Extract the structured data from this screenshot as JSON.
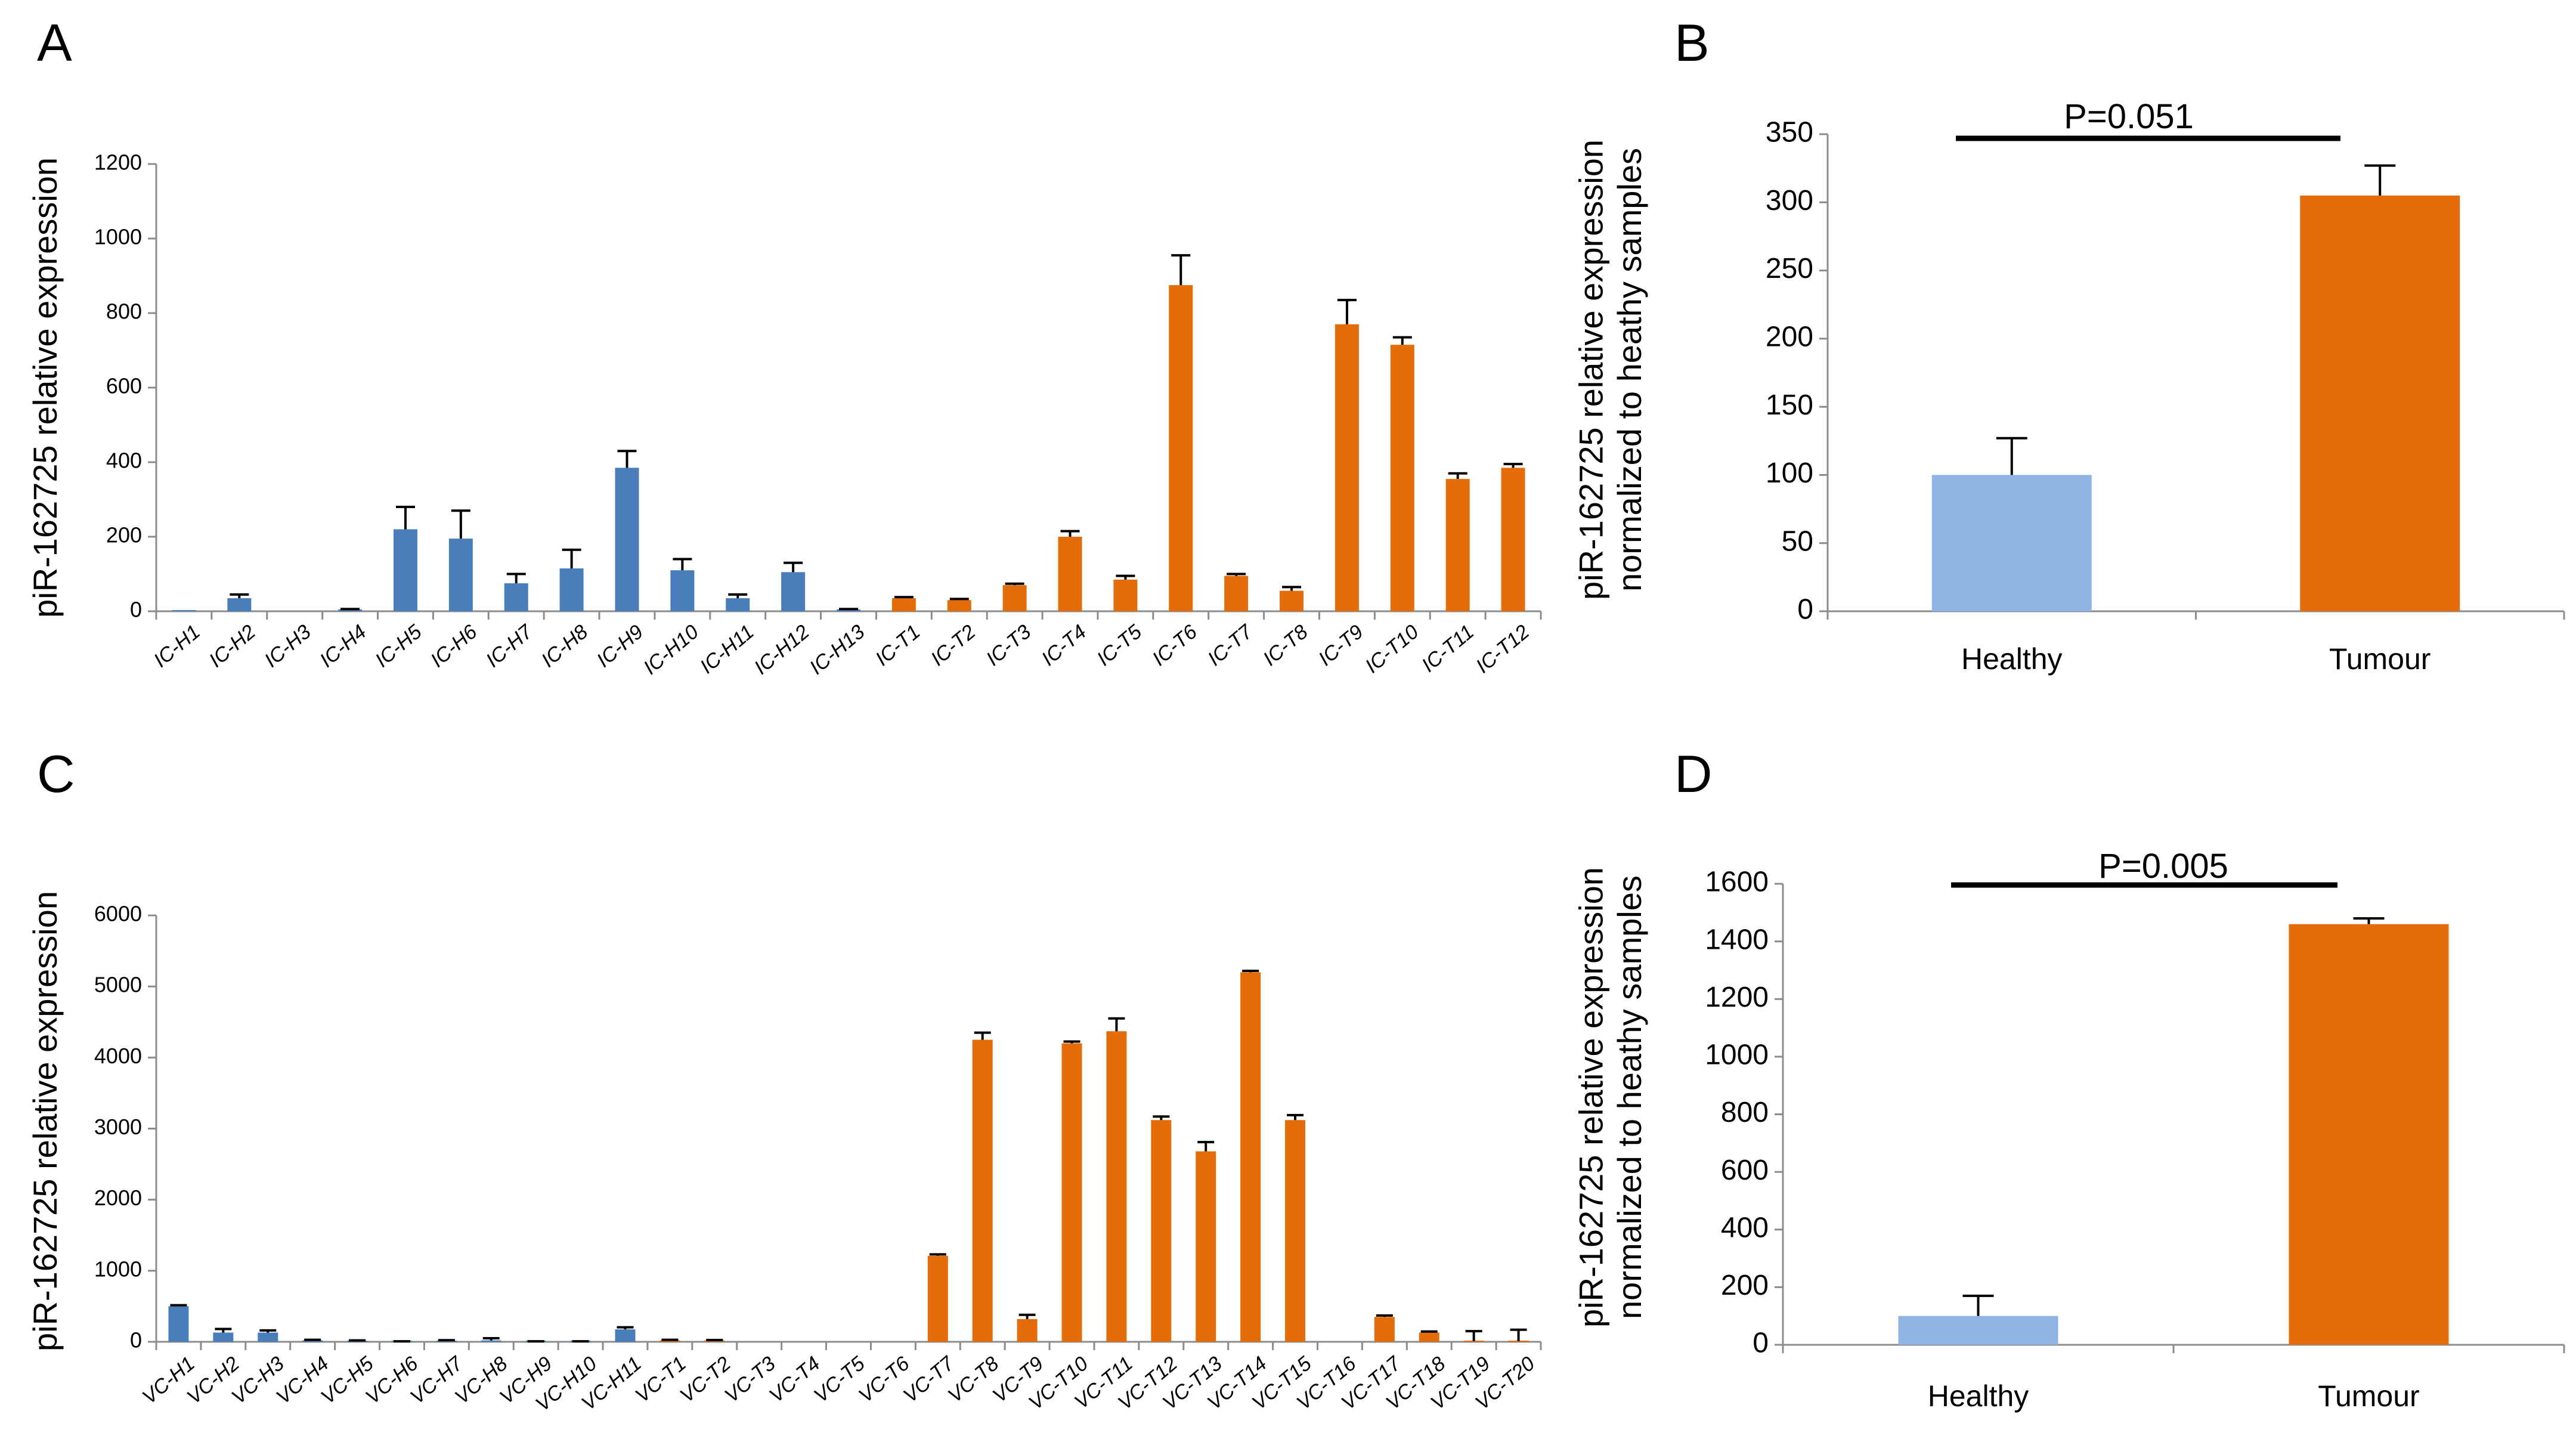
{
  "colors": {
    "healthy_individual": "#4a7ebb",
    "tumour": "#e46c0a",
    "healthy_group": "#8eb4e3",
    "axis": "#8c8c8c"
  },
  "chart_data": [
    {
      "panel": "A",
      "type": "bar",
      "ylabel": "piR-162725 relative expression",
      "ylim": [
        0,
        1200
      ],
      "yticks": [
        0,
        200,
        400,
        600,
        800,
        1000,
        1200
      ],
      "categories": [
        "IC-H1",
        "IC-H2",
        "IC-H3",
        "IC-H4",
        "IC-H5",
        "IC-H6",
        "IC-H7",
        "IC-H8",
        "IC-H9",
        "IC-H10",
        "IC-H11",
        "IC-H12",
        "IC-H13",
        "IC-T1",
        "IC-T2",
        "IC-T3",
        "IC-T4",
        "IC-T5",
        "IC-T6",
        "IC-T7",
        "IC-T8",
        "IC-T9",
        "IC-T10",
        "IC-T11",
        "IC-T12"
      ],
      "values": [
        1,
        35,
        0,
        5,
        220,
        195,
        75,
        115,
        385,
        110,
        35,
        105,
        5,
        35,
        30,
        70,
        200,
        85,
        875,
        95,
        55,
        770,
        715,
        355,
        385
      ],
      "errors": [
        0,
        10,
        0,
        1,
        60,
        75,
        25,
        50,
        45,
        30,
        10,
        25,
        1,
        3,
        3,
        4,
        15,
        10,
        80,
        5,
        10,
        65,
        20,
        15,
        10
      ],
      "groups": [
        "healthy",
        "healthy",
        "healthy",
        "healthy",
        "healthy",
        "healthy",
        "healthy",
        "healthy",
        "healthy",
        "healthy",
        "healthy",
        "healthy",
        "healthy",
        "tumour",
        "tumour",
        "tumour",
        "tumour",
        "tumour",
        "tumour",
        "tumour",
        "tumour",
        "tumour",
        "tumour",
        "tumour",
        "tumour"
      ],
      "grid": false,
      "legend": "none"
    },
    {
      "panel": "B",
      "type": "bar",
      "ylabel": [
        "piR-162725 relative expression",
        "normalized to heathy samples"
      ],
      "ylim": [
        0,
        350
      ],
      "yticks": [
        0,
        50,
        100,
        150,
        200,
        250,
        300,
        350
      ],
      "categories": [
        "Healthy",
        "Tumour"
      ],
      "values": [
        100,
        305
      ],
      "errors": [
        27,
        22
      ],
      "groups": [
        "healthy_group",
        "tumour"
      ],
      "annotation": "P=0.051",
      "grid": false,
      "legend": "none"
    },
    {
      "panel": "C",
      "type": "bar",
      "ylabel": "piR-162725 relative expression",
      "ylim": [
        0,
        6000
      ],
      "yticks": [
        0,
        1000,
        2000,
        3000,
        4000,
        5000,
        6000
      ],
      "categories": [
        "VC-H1",
        "VC-H2",
        "VC-H3",
        "VC-H4",
        "VC-H5",
        "VC-H6",
        "VC-H7",
        "VC-H8",
        "VC-H9",
        "VC-H10",
        "VC-H11",
        "VC-T1",
        "VC-T2",
        "VC-T3",
        "VC-T4",
        "VC-T5",
        "VC-T6",
        "VC-T7",
        "VC-T8",
        "VC-T9",
        "VC-T10",
        "VC-T11",
        "VC-T12",
        "VC-T13",
        "VC-T14",
        "VC-T15",
        "VC-T16",
        "VC-T17",
        "VC-T18",
        "VC-T19",
        "VC-T20"
      ],
      "values": [
        500,
        130,
        130,
        20,
        15,
        5,
        15,
        20,
        5,
        5,
        175,
        20,
        20,
        0,
        0,
        0,
        0,
        1210,
        4250,
        320,
        4200,
        4370,
        3120,
        2680,
        5200,
        3120,
        0,
        350,
        130,
        10,
        10
      ],
      "errors": [
        15,
        50,
        30,
        8,
        5,
        2,
        8,
        30,
        2,
        2,
        30,
        8,
        5,
        0,
        0,
        0,
        0,
        20,
        100,
        60,
        25,
        180,
        50,
        130,
        20,
        70,
        0,
        20,
        15,
        140,
        160
      ],
      "groups": [
        "healthy",
        "healthy",
        "healthy",
        "healthy",
        "healthy",
        "healthy",
        "healthy",
        "healthy",
        "healthy",
        "healthy",
        "healthy",
        "tumour",
        "tumour",
        "tumour",
        "tumour",
        "tumour",
        "tumour",
        "tumour",
        "tumour",
        "tumour",
        "tumour",
        "tumour",
        "tumour",
        "tumour",
        "tumour",
        "tumour",
        "tumour",
        "tumour",
        "tumour",
        "tumour",
        "tumour"
      ],
      "grid": false,
      "legend": "none"
    },
    {
      "panel": "D",
      "type": "bar",
      "ylabel": [
        "piR-162725 relative expression",
        "normalized to heathy samples"
      ],
      "ylim": [
        0,
        1600
      ],
      "yticks": [
        0,
        200,
        400,
        600,
        800,
        1000,
        1200,
        1400,
        1600
      ],
      "categories": [
        "Healthy",
        "Tumour"
      ],
      "values": [
        100,
        1460
      ],
      "errors": [
        70,
        20
      ],
      "groups": [
        "healthy_group",
        "tumour"
      ],
      "annotation": "P=0.005",
      "grid": false,
      "legend": "none"
    }
  ]
}
